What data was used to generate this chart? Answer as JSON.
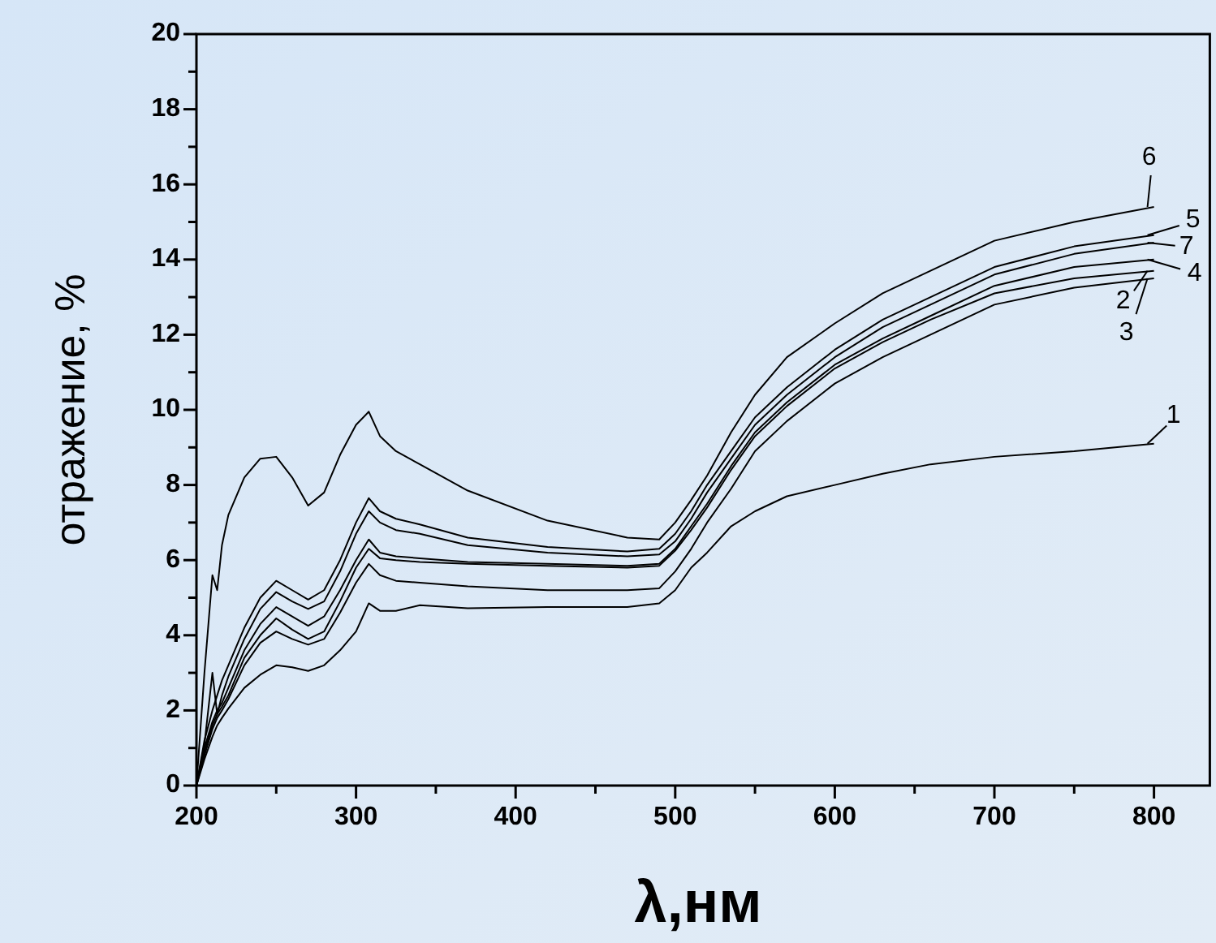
{
  "chart_data": {
    "type": "line",
    "xlabel": "λ,нм",
    "ylabel": "отражение, %",
    "x": [
      200,
      205,
      210,
      213,
      216,
      220,
      230,
      240,
      250,
      260,
      270,
      280,
      290,
      300,
      308,
      315,
      325,
      340,
      370,
      420,
      470,
      490,
      500,
      510,
      520,
      535,
      550,
      570,
      600,
      630,
      660,
      700,
      750,
      800
    ],
    "xlim": [
      200,
      835
    ],
    "ylim": [
      0,
      20
    ],
    "xticks": [
      200,
      {
        "value": 250,
        "label": null
      },
      300,
      {
        "value": 350,
        "label": null
      },
      400,
      {
        "value": 450,
        "label": null
      },
      500,
      {
        "value": 550,
        "label": null
      },
      600,
      {
        "value": 650,
        "label": null
      },
      700,
      {
        "value": 750,
        "label": null
      },
      800
    ],
    "yticks": [
      0,
      {
        "value": 1,
        "label": null
      },
      2,
      {
        "value": 3,
        "label": null
      },
      4,
      {
        "value": 5,
        "label": null
      },
      6,
      {
        "value": 7,
        "label": null
      },
      8,
      {
        "value": 9,
        "label": null
      },
      10,
      {
        "value": 11,
        "label": null
      },
      12,
      {
        "value": 13,
        "label": null
      },
      14,
      {
        "value": 15,
        "label": null
      },
      16,
      {
        "value": 17,
        "label": null
      },
      18,
      {
        "value": 19,
        "label": null
      },
      20
    ],
    "grid": false,
    "legend": "right",
    "line_style": "solid",
    "series": [
      {
        "name": "1",
        "color": "#000000",
        "values": [
          0,
          0.7,
          1.3,
          1.6,
          1.8,
          2.05,
          2.6,
          2.95,
          3.2,
          3.15,
          3.05,
          3.2,
          3.6,
          4.1,
          4.85,
          4.65,
          4.65,
          4.8,
          4.72,
          4.75,
          4.75,
          4.85,
          5.2,
          5.8,
          6.2,
          6.9,
          7.3,
          7.7,
          8.0,
          8.3,
          8.55,
          8.75,
          8.9,
          9.1
        ]
      },
      {
        "name": "2",
        "color": "#000000",
        "values": [
          0,
          0.9,
          1.6,
          1.9,
          2.1,
          2.4,
          3.4,
          4.0,
          4.45,
          4.15,
          3.9,
          4.1,
          4.9,
          5.8,
          6.3,
          6.05,
          6.0,
          5.95,
          5.9,
          5.85,
          5.8,
          5.85,
          6.25,
          6.8,
          7.4,
          8.4,
          9.3,
          10.1,
          11.1,
          11.8,
          12.4,
          13.1,
          13.5,
          13.7
        ]
      },
      {
        "name": "3",
        "color": "#000000",
        "values": [
          0,
          0.8,
          1.5,
          1.8,
          2.0,
          2.3,
          3.2,
          3.8,
          4.1,
          3.9,
          3.75,
          3.9,
          4.6,
          5.4,
          5.9,
          5.6,
          5.45,
          5.4,
          5.3,
          5.2,
          5.2,
          5.25,
          5.7,
          6.3,
          7.0,
          7.9,
          8.9,
          9.7,
          10.7,
          11.4,
          12.0,
          12.8,
          13.25,
          13.5
        ]
      },
      {
        "name": "4",
        "color": "#000000",
        "values": [
          0,
          1.0,
          1.7,
          2.0,
          2.2,
          2.6,
          3.6,
          4.3,
          4.75,
          4.5,
          4.25,
          4.5,
          5.2,
          6.0,
          6.55,
          6.2,
          6.1,
          6.05,
          5.95,
          5.9,
          5.85,
          5.9,
          6.3,
          6.9,
          7.5,
          8.5,
          9.4,
          10.2,
          11.2,
          11.9,
          12.5,
          13.3,
          13.8,
          14.0
        ]
      },
      {
        "name": "5",
        "color": "#000000",
        "values": [
          0,
          1.2,
          2.0,
          2.4,
          2.8,
          3.2,
          4.2,
          5.0,
          5.45,
          5.2,
          4.95,
          5.2,
          6.0,
          7.0,
          7.65,
          7.3,
          7.1,
          6.95,
          6.6,
          6.35,
          6.23,
          6.3,
          6.7,
          7.3,
          8.0,
          8.9,
          9.8,
          10.6,
          11.6,
          12.4,
          13.0,
          13.8,
          14.35,
          14.65
        ]
      },
      {
        "name": "6",
        "color": "#000000",
        "values": [
          0,
          3.0,
          5.6,
          5.2,
          6.4,
          7.2,
          8.2,
          8.7,
          8.75,
          8.2,
          7.45,
          7.8,
          8.8,
          9.6,
          9.95,
          9.3,
          8.9,
          8.55,
          7.85,
          7.05,
          6.6,
          6.55,
          7.0,
          7.6,
          8.25,
          9.4,
          10.4,
          11.4,
          12.3,
          13.1,
          13.7,
          14.5,
          15.0,
          15.4
        ]
      },
      {
        "name": "7",
        "color": "#000000",
        "values": [
          0,
          1.1,
          3.0,
          1.9,
          2.4,
          2.9,
          3.9,
          4.7,
          5.15,
          4.9,
          4.7,
          4.9,
          5.7,
          6.7,
          7.3,
          7.0,
          6.8,
          6.7,
          6.4,
          6.2,
          6.1,
          6.15,
          6.5,
          7.1,
          7.8,
          8.7,
          9.6,
          10.4,
          11.4,
          12.2,
          12.8,
          13.6,
          14.15,
          14.45
        ]
      }
    ]
  }
}
